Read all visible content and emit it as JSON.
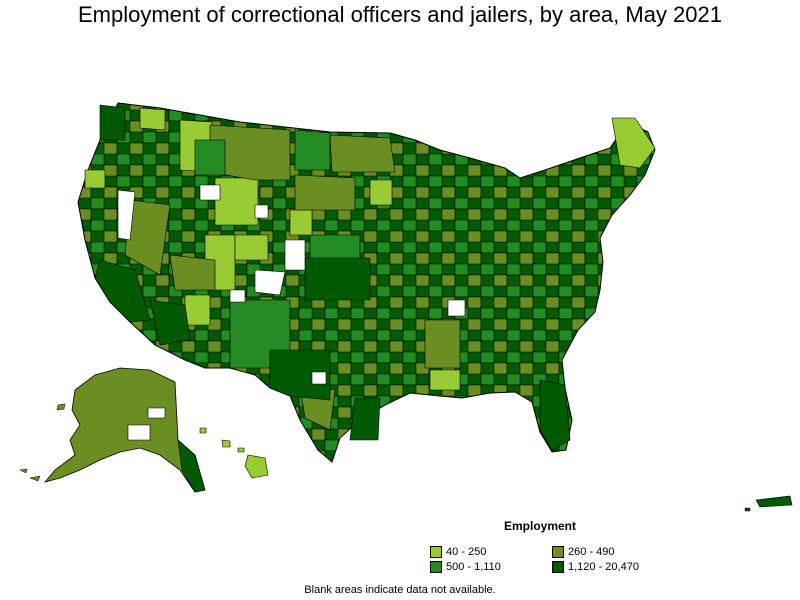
{
  "title": "Employment of correctional officers and jailers, by area, May 2021",
  "legend": {
    "title": "Employment",
    "items": [
      {
        "label": "40 - 250",
        "color": "#99cc33"
      },
      {
        "label": "260 - 490",
        "color": "#6b8e23"
      },
      {
        "label": "500 - 1,110",
        "color": "#228b22"
      },
      {
        "label": "1,120 - 20,470",
        "color": "#005a00"
      }
    ]
  },
  "note": "Blank areas indicate data not available.",
  "colors": {
    "border": "#000000",
    "blank": "#ffffff"
  }
}
